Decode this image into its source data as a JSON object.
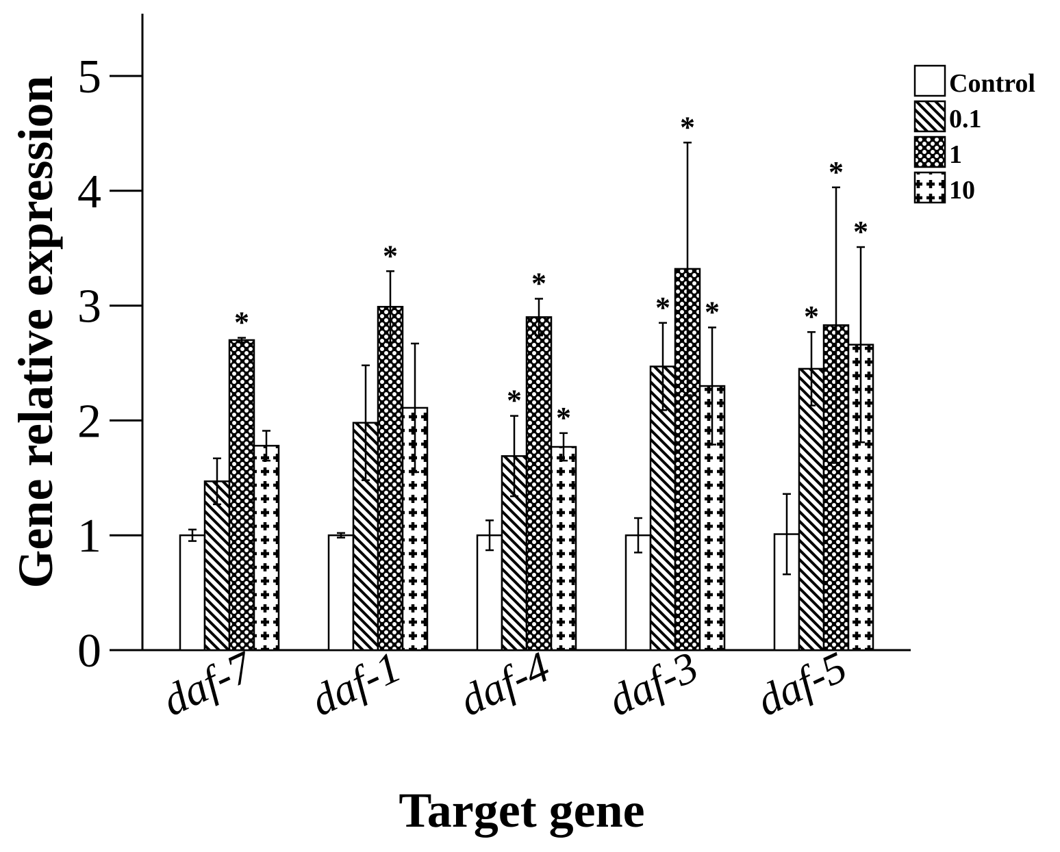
{
  "chart_data": {
    "type": "bar",
    "title": "",
    "xlabel": "Target gene",
    "ylabel": "Gene relative expression",
    "ylim": [
      0,
      5.5
    ],
    "yticks": [
      "0",
      "1",
      "2",
      "3",
      "4",
      "5"
    ],
    "categories": [
      "daf-7",
      "daf-1",
      "daf-4",
      "daf-3",
      "daf-5"
    ],
    "series": [
      {
        "name": "Control",
        "pattern": "blank",
        "values": [
          1.0,
          1.0,
          1.0,
          1.0,
          1.01
        ],
        "errors": [
          0.05,
          0.02,
          0.13,
          0.15,
          0.35
        ],
        "significant": [
          false,
          false,
          false,
          false,
          false
        ]
      },
      {
        "name": "0.1",
        "pattern": "diagonal-hatch",
        "values": [
          1.47,
          1.98,
          1.69,
          2.47,
          2.45
        ],
        "errors": [
          0.2,
          0.5,
          0.35,
          0.38,
          0.32
        ],
        "significant": [
          false,
          false,
          true,
          true,
          true
        ]
      },
      {
        "name": "1",
        "pattern": "crosshatch",
        "values": [
          2.7,
          2.99,
          2.9,
          3.32,
          2.83
        ],
        "errors": [
          0.02,
          0.31,
          0.16,
          1.1,
          1.2
        ],
        "significant": [
          true,
          true,
          true,
          true,
          true
        ]
      },
      {
        "name": "10",
        "pattern": "plus",
        "values": [
          1.78,
          2.11,
          1.77,
          2.3,
          2.66
        ],
        "errors": [
          0.13,
          0.56,
          0.12,
          0.51,
          0.85
        ],
        "significant": [
          false,
          false,
          true,
          true,
          true
        ]
      }
    ],
    "significance_marker": "*",
    "legend_position": "top-right",
    "grid": false
  }
}
